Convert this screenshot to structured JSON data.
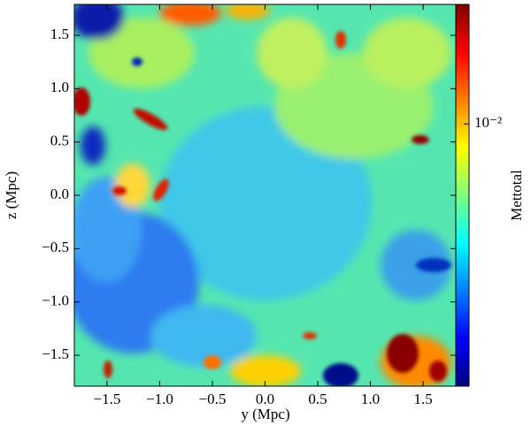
{
  "chart_data": {
    "type": "heatmap",
    "xlabel": "y  (Mpc)",
    "ylabel": "z  (Mpc)",
    "xlim": [
      -1.81,
      1.81
    ],
    "ylim": [
      -1.79,
      1.79
    ],
    "xticks": [
      {
        "value": -1.5,
        "label": "−1.5"
      },
      {
        "value": -1.0,
        "label": "−1.0"
      },
      {
        "value": -0.5,
        "label": "−0.5"
      },
      {
        "value": 0.0,
        "label": "0.0"
      },
      0.5,
      {
        "value": 1.0,
        "label": "1.0"
      },
      1.5
    ],
    "yticks": [
      {
        "value": -1.5,
        "label": "−1.5"
      },
      {
        "value": -1.0,
        "label": "−1.0"
      },
      {
        "value": -0.5,
        "label": "−0.5"
      },
      {
        "value": 0.0,
        "label": "0.0"
      },
      0.5,
      {
        "value": 1.0,
        "label": "1.0"
      },
      1.5
    ],
    "colorbar": {
      "label": "Mettotal",
      "log": true,
      "clim": [
        0.00078,
        0.032
      ],
      "ticks": [
        {
          "value": 0.01,
          "label": "10⁻²"
        }
      ],
      "colormap": [
        "#00007f",
        "#0000ff",
        "#007fff",
        "#00ffff",
        "#7fff7f",
        "#ffff00",
        "#ff7f00",
        "#ff0000",
        "#7f0000"
      ]
    }
  }
}
